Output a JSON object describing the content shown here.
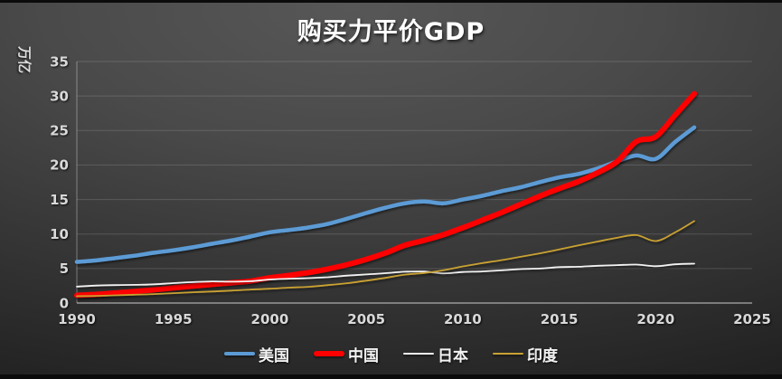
{
  "chart_data": {
    "type": "line",
    "title": "购买力平价GDP",
    "ylabel": "万亿",
    "xlabel": "",
    "xlim": [
      1990,
      2025
    ],
    "ylim": [
      0,
      35
    ],
    "xticks": [
      1990,
      1995,
      2000,
      2005,
      2010,
      2015,
      2020,
      2025
    ],
    "yticks": [
      0,
      5,
      10,
      15,
      20,
      25,
      30,
      35
    ],
    "grid": true,
    "legend_position": "bottom",
    "x": [
      1990,
      1991,
      1992,
      1993,
      1994,
      1995,
      1996,
      1997,
      1998,
      1999,
      2000,
      2001,
      2002,
      2003,
      2004,
      2005,
      2006,
      2007,
      2008,
      2009,
      2010,
      2011,
      2012,
      2013,
      2014,
      2015,
      2016,
      2017,
      2018,
      2019,
      2020,
      2021,
      2022
    ],
    "series": [
      {
        "name": "美国",
        "color": "#5B9BD5",
        "width": 4.5,
        "values": [
          5.96,
          6.17,
          6.52,
          6.86,
          7.29,
          7.64,
          8.07,
          8.58,
          9.06,
          9.63,
          10.25,
          10.58,
          10.94,
          11.46,
          12.22,
          13.04,
          13.82,
          14.45,
          14.71,
          14.45,
          14.99,
          15.54,
          16.2,
          16.78,
          17.52,
          18.21,
          18.71,
          19.52,
          20.53,
          21.38,
          20.89,
          23.32,
          25.46
        ]
      },
      {
        "name": "中国",
        "color": "#FE0000",
        "width": 6,
        "values": [
          1.11,
          1.25,
          1.45,
          1.68,
          1.92,
          2.19,
          2.45,
          2.7,
          2.93,
          3.17,
          3.66,
          4.0,
          4.41,
          4.93,
          5.56,
          6.33,
          7.25,
          8.36,
          9.09,
          9.9,
          10.9,
          12.0,
          13.1,
          14.3,
          15.5,
          16.6,
          17.6,
          18.9,
          20.5,
          23.4,
          24.1,
          27.2,
          30.33
        ]
      },
      {
        "name": "日本",
        "color": "#F2F2F2",
        "width": 1.8,
        "values": [
          2.38,
          2.53,
          2.6,
          2.64,
          2.71,
          2.88,
          3.03,
          3.13,
          3.1,
          3.16,
          3.41,
          3.52,
          3.61,
          3.74,
          3.97,
          4.14,
          4.33,
          4.53,
          4.56,
          4.3,
          4.49,
          4.57,
          4.73,
          4.92,
          5.0,
          5.2,
          5.26,
          5.4,
          5.49,
          5.57,
          5.33,
          5.61,
          5.7
        ]
      },
      {
        "name": "印度",
        "color": "#C9A132",
        "width": 1.8,
        "values": [
          0.99,
          1.04,
          1.12,
          1.2,
          1.3,
          1.43,
          1.56,
          1.66,
          1.79,
          1.95,
          2.07,
          2.23,
          2.35,
          2.59,
          2.87,
          3.24,
          3.65,
          4.11,
          4.35,
          4.76,
          5.31,
          5.78,
          6.21,
          6.7,
          7.2,
          7.76,
          8.36,
          8.91,
          9.45,
          9.85,
          8.98,
          10.22,
          11.87
        ]
      }
    ]
  },
  "colors": {
    "background_dark": "#222222",
    "background_light": "#575757",
    "grid": "#5b5b5b",
    "axis_text": "#d9d9d9",
    "title_text": "#ffffff"
  }
}
